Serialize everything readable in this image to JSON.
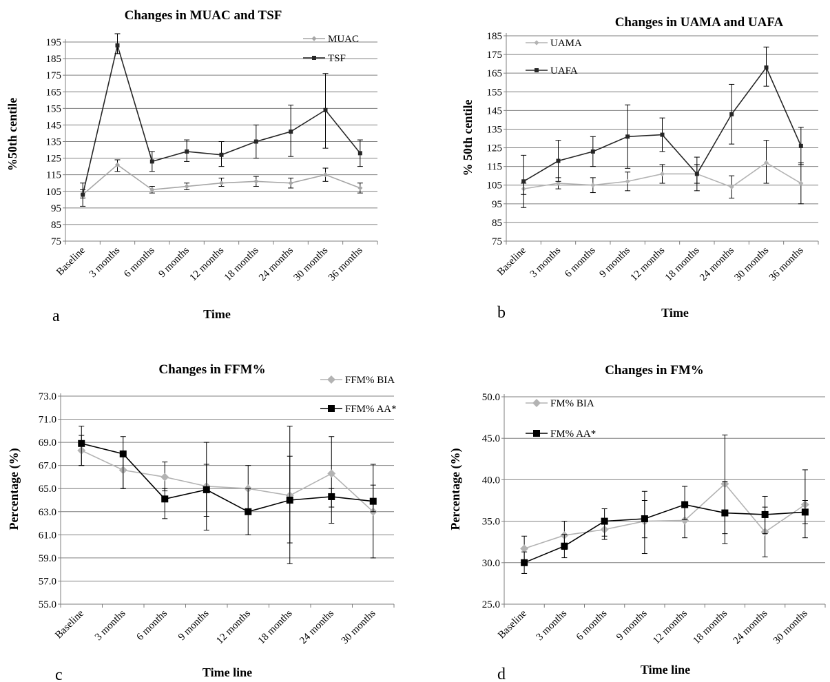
{
  "chart_data": [
    {
      "type": "line",
      "panel_letter": "a",
      "title": "Changes in MUAC and TSF",
      "xlabel": "Time",
      "ylabel": "%50th centile",
      "categories": [
        "Baseline",
        "3 months",
        "6 months",
        "9 months",
        "12 months",
        "18 months",
        "24 months",
        "30 months",
        "36 months"
      ],
      "ylim": [
        75,
        195
      ],
      "yticks": [
        "75",
        "85",
        "95",
        "105",
        "115",
        "125",
        "135",
        "145",
        "155",
        "165",
        "175",
        "185",
        "195"
      ],
      "grid": true,
      "legend_position": "top-right",
      "series": [
        {
          "name": "MUAC",
          "color": "#a6a6a6",
          "marker": "diamond",
          "values": [
            103,
            121,
            106,
            108,
            110,
            111,
            110,
            115,
            107
          ],
          "err_low": [
            101,
            117,
            104,
            106,
            108,
            108,
            107,
            111,
            104
          ],
          "err_high": [
            106,
            124,
            108,
            110,
            113,
            114,
            113,
            119,
            110
          ]
        },
        {
          "name": "TSF",
          "color": "#262626",
          "marker": "square",
          "values": [
            103,
            193,
            123,
            129,
            127,
            135,
            141,
            154,
            128
          ],
          "err_low": [
            96,
            188,
            117,
            123,
            120,
            125,
            126,
            131,
            120
          ],
          "err_high": [
            110,
            200,
            129,
            136,
            135,
            145,
            157,
            176,
            136
          ]
        }
      ]
    },
    {
      "type": "line",
      "panel_letter": "b",
      "title": "Changes in UAMA  and UAFA",
      "xlabel": "Time",
      "ylabel": "% 50th centile",
      "categories": [
        "Baseline",
        "3 months",
        "6 months",
        "9 months",
        "12 months",
        "18 months",
        "24 months",
        "30 months",
        "36 months"
      ],
      "ylim": [
        75,
        185
      ],
      "yticks": [
        "75",
        "85",
        "95",
        "105",
        "115",
        "125",
        "135",
        "145",
        "155",
        "165",
        "175",
        "185"
      ],
      "grid": true,
      "legend_position": "top-left",
      "series": [
        {
          "name": "UAMA",
          "color": "#b3b3b3",
          "marker": "diamond",
          "values": [
            103,
            106,
            105,
            107,
            111,
            111,
            104,
            117,
            106
          ],
          "err_low": [
            100,
            103,
            101,
            102,
            106,
            106,
            98,
            106,
            95
          ],
          "err_high": [
            106,
            109,
            109,
            112,
            116,
            116,
            110,
            129,
            117
          ]
        },
        {
          "name": "UAFA",
          "color": "#262626",
          "marker": "square",
          "values": [
            107,
            118,
            123,
            131,
            132,
            111,
            143,
            168,
            126
          ],
          "err_low": [
            93,
            107,
            115,
            114,
            123,
            102,
            127,
            158,
            116
          ],
          "err_high": [
            121,
            129,
            131,
            148,
            141,
            120,
            159,
            179,
            136
          ]
        }
      ]
    },
    {
      "type": "line",
      "panel_letter": "c",
      "title": "Changes in FFM%",
      "xlabel": "Time line",
      "ylabel": "Percentage (%)",
      "categories": [
        "Baseline",
        "3 months",
        "6 months",
        "9 months",
        "12 months",
        "18 months",
        "24 months",
        "30 months"
      ],
      "ylim": [
        55,
        73
      ],
      "yticks": [
        "55.0",
        "57.0",
        "59.0",
        "61.0",
        "63.0",
        "65.0",
        "67.0",
        "69.0",
        "71.0",
        "73.0"
      ],
      "grid": true,
      "legend_position": "top-right",
      "series": [
        {
          "name": "FFM% BIA",
          "color": "#b3b3b3",
          "marker": "diamond",
          "values": [
            68.3,
            66.6,
            66.0,
            65.2,
            65.0,
            64.4,
            66.3,
            63.0
          ],
          "err_low": [
            67.0,
            65.0,
            64.8,
            61.4,
            63.0,
            58.5,
            63.4,
            59.0
          ],
          "err_high": [
            69.6,
            68.2,
            67.3,
            69.0,
            67.0,
            70.4,
            69.5,
            67.1
          ]
        },
        {
          "name": "FFM% AA*",
          "color": "#000000",
          "marker": "square",
          "values": [
            68.9,
            68.0,
            64.1,
            64.9,
            63.0,
            64.0,
            64.3,
            63.9
          ],
          "err_low": [
            67.0,
            65.0,
            62.4,
            62.6,
            61.0,
            60.3,
            62.0,
            63.0
          ],
          "err_high": [
            70.4,
            69.5,
            65.0,
            67.1,
            65.0,
            67.8,
            65.0,
            65.3
          ]
        }
      ]
    },
    {
      "type": "line",
      "panel_letter": "d",
      "title": "Changes in FM%",
      "xlabel": "Time line",
      "ylabel": "Percentage (%)",
      "categories": [
        "Baseline",
        "3 months",
        "6 months",
        "9 months",
        "12 months",
        "18 months",
        "24 months",
        "30 months"
      ],
      "ylim": [
        25,
        50
      ],
      "yticks": [
        "25.0",
        "30.0",
        "35.0",
        "40.0",
        "45.0",
        "50.0"
      ],
      "grid": true,
      "legend_position": "top-left",
      "series": [
        {
          "name": "FM% BIA",
          "color": "#b3b3b3",
          "marker": "diamond",
          "values": [
            31.7,
            33.3,
            34.0,
            35.0,
            35.1,
            39.5,
            33.7,
            37.0
          ],
          "err_low": [
            30.2,
            31.6,
            32.8,
            31.1,
            33.0,
            33.5,
            30.7,
            33.0
          ],
          "err_high": [
            33.2,
            35.0,
            35.2,
            38.6,
            37.2,
            45.4,
            36.7,
            41.2
          ]
        },
        {
          "name": "FM% AA*",
          "color": "#000000",
          "marker": "square",
          "values": [
            30.0,
            32.0,
            35.0,
            35.3,
            37.0,
            36.0,
            35.8,
            36.1
          ],
          "err_low": [
            28.7,
            30.6,
            33.2,
            33.0,
            35.2,
            32.3,
            33.5,
            34.7
          ],
          "err_high": [
            31.3,
            33.4,
            36.5,
            37.5,
            39.2,
            39.8,
            38.0,
            37.5
          ]
        }
      ]
    }
  ]
}
